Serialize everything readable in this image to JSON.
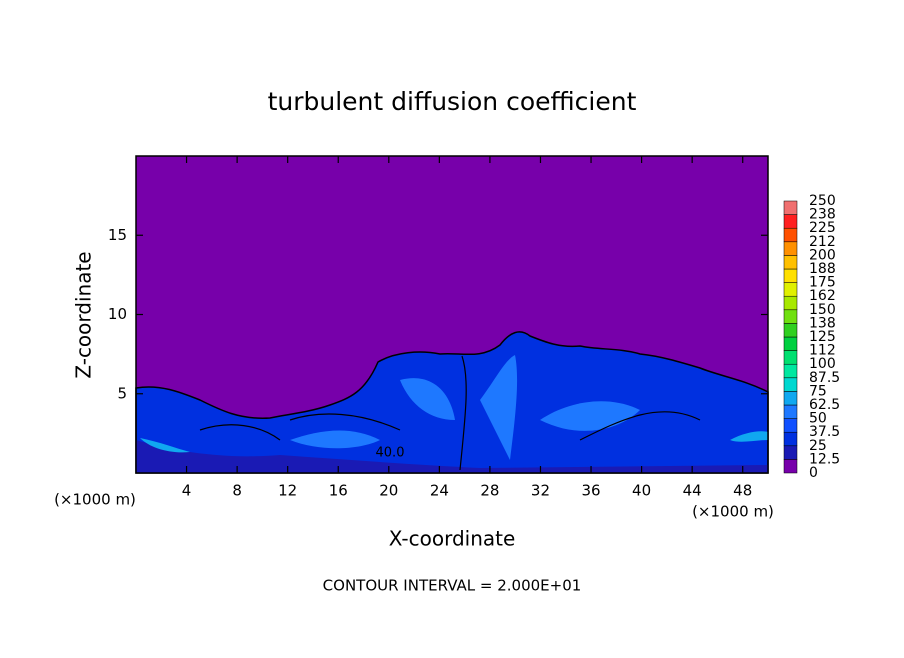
{
  "chart_data": {
    "type": "contour",
    "title": "turbulent diffusion coefficient",
    "xlabel": "X-coordinate",
    "ylabel": "Z-coordinate",
    "x_unit_label": "(×1000 m)",
    "contour_interval": "CONTOUR INTERVAL = 2.000E+01",
    "contour_label": "40.0",
    "xlim": [
      0,
      50
    ],
    "xticks": [
      4,
      8,
      12,
      16,
      20,
      24,
      28,
      32,
      36,
      40,
      44,
      48
    ],
    "ylim": [
      0,
      20
    ],
    "yticks": [
      5,
      10,
      15
    ],
    "levels": [
      0,
      12.5,
      25,
      37.5,
      50,
      62.5,
      75,
      87.5,
      100,
      112,
      125,
      138,
      150,
      162,
      175,
      188,
      200,
      212,
      225,
      238,
      250
    ],
    "colors": [
      "#7700aa",
      "#1a1ab4",
      "#0030e0",
      "#1050ff",
      "#1e78ff",
      "#10a8f0",
      "#00d8d0",
      "#00e8a0",
      "#00e070",
      "#00d040",
      "#30d020",
      "#70e010",
      "#a8e800",
      "#e0f000",
      "#ffe000",
      "#ffc000",
      "#ff9000",
      "#ff5000",
      "#ff2020",
      "#f07070"
    ]
  }
}
